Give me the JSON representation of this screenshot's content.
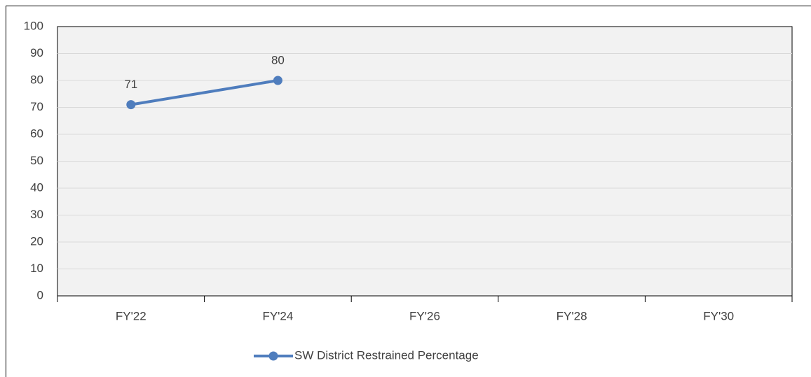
{
  "chart_data": {
    "type": "line",
    "categories": [
      "FY'22",
      "FY'24",
      "FY'26",
      "FY'28",
      "FY'30"
    ],
    "series": [
      {
        "name": "SW District Restrained Percentage",
        "color": "#4f7dbd",
        "values": [
          71,
          80,
          null,
          null,
          null
        ]
      }
    ],
    "ylim": [
      0,
      100
    ],
    "yticks": [
      0,
      10,
      20,
      30,
      40,
      50,
      60,
      70,
      80,
      90,
      100
    ],
    "grid": true,
    "legend": "bottom",
    "data_labels": true
  }
}
